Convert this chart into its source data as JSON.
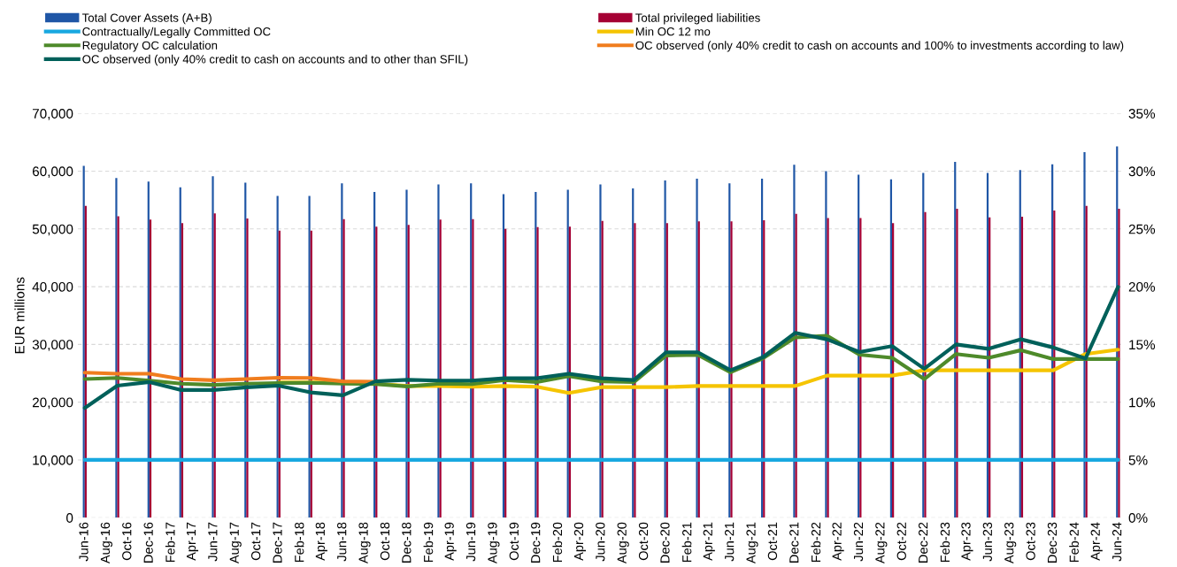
{
  "chart_data": {
    "type": "bar",
    "ylabel": "EUR millions",
    "x": [
      "2016-06",
      "2016-09",
      "2016-12",
      "2017-03",
      "2017-06",
      "2017-09",
      "2017-12",
      "2018-03",
      "2018-06",
      "2018-09",
      "2018-12",
      "2019-03",
      "2019-06",
      "2019-09",
      "2019-12",
      "2020-03",
      "2020-06",
      "2020-09",
      "2020-12",
      "2021-03",
      "2021-06",
      "2021-09",
      "2021-12",
      "2022-03",
      "2022-06",
      "2022-09",
      "2022-12",
      "2023-03",
      "2023-06",
      "2023-09",
      "2023-12",
      "2024-03",
      "2024-06"
    ],
    "series": [
      {
        "name": "Total Cover Assets (A+B)",
        "color": "#1f56a6",
        "values": [
          60900,
          58800,
          58200,
          57200,
          59100,
          58000,
          55700,
          55700,
          57900,
          56400,
          56800,
          57700,
          57900,
          56000,
          56400,
          56800,
          57700,
          57000,
          58400,
          58700,
          57900,
          58700,
          61100,
          60000,
          59400,
          58600,
          59700,
          61600,
          59700,
          60200,
          61200,
          63300,
          64300
        ]
      },
      {
        "name": "Total privileged liabilities",
        "color": "#a50034",
        "values": [
          54000,
          52200,
          51600,
          51000,
          52700,
          51800,
          49700,
          49700,
          51700,
          50400,
          50700,
          51600,
          51700,
          50000,
          50300,
          50400,
          51400,
          51000,
          51000,
          51300,
          51300,
          51500,
          52600,
          51900,
          51900,
          51000,
          52900,
          53500,
          52000,
          52100,
          53200,
          54000,
          53500
        ]
      },
      {
        "name": "Contractually/Legally Committed OC",
        "type": "line",
        "axis": "y2",
        "color": "#18a8e0",
        "values": [
          5,
          5,
          5,
          5,
          5,
          5,
          5,
          5,
          5,
          5,
          5,
          5,
          5,
          5,
          5,
          5,
          5,
          5,
          5,
          5,
          5,
          5,
          5,
          5,
          5,
          5,
          5,
          5,
          5,
          5,
          5,
          5,
          5
        ]
      },
      {
        "name": "Min OC 12 mo",
        "type": "line",
        "axis": "y2",
        "color": "#f5c400",
        "values": [
          null,
          null,
          null,
          null,
          null,
          null,
          11.7,
          11.7,
          11.7,
          11.6,
          11.4,
          11.4,
          11.33,
          11.4,
          11.33,
          10.8,
          11.3,
          11.3,
          11.3,
          11.4,
          11.4,
          11.4,
          11.4,
          12.3,
          12.3,
          12.3,
          12.76,
          12.76,
          12.76,
          12.76,
          12.76,
          14.17,
          14.55
        ]
      },
      {
        "name": "Regulatory OC calculation",
        "type": "line",
        "axis": "y2",
        "color": "#4e8a2a",
        "values": [
          12.0,
          12.1,
          11.87,
          11.6,
          11.5,
          11.6,
          11.66,
          11.68,
          11.6,
          11.56,
          11.36,
          11.6,
          11.56,
          11.92,
          11.74,
          12.25,
          11.8,
          11.74,
          14.04,
          14.1,
          12.58,
          13.8,
          15.6,
          15.75,
          14.11,
          13.84,
          12.0,
          14.17,
          13.84,
          14.5,
          13.73,
          13.73,
          13.73
        ]
      },
      {
        "name": "OC observed (only 40% credit to cash on accounts and 100% to investments according to law)",
        "type": "line",
        "axis": "y2",
        "color": "#f07d1e",
        "values": [
          12.56,
          12.46,
          12.46,
          12.0,
          11.9,
          12.0,
          12.12,
          12.1,
          11.8,
          11.77,
          null,
          null,
          null,
          null,
          null,
          null,
          null,
          null,
          null,
          null,
          null,
          null,
          null,
          null,
          null,
          null,
          null,
          null,
          null,
          null,
          null,
          null,
          null
        ]
      },
      {
        "name": "OC observed (only 40% credit to cash on accounts and to other than SFIL)",
        "type": "line",
        "axis": "y2",
        "color": "#00605a",
        "values": [
          9.5,
          11.43,
          11.74,
          11.05,
          11.05,
          11.28,
          11.43,
          10.85,
          10.6,
          11.8,
          11.94,
          11.87,
          11.87,
          12.07,
          12.07,
          12.46,
          12.07,
          11.92,
          14.32,
          14.32,
          12.76,
          13.9,
          16.0,
          15.44,
          14.34,
          14.85,
          12.89,
          15.0,
          14.62,
          15.44,
          14.73,
          13.78,
          19.98
        ]
      }
    ],
    "xlim": [
      "2016-05-12",
      "2024-06-18"
    ],
    "xticks": [
      {
        "value": "2016-06",
        "label": "Jun-16"
      },
      {
        "value": "2016-08",
        "label": "Aug-16"
      },
      {
        "value": "2016-10",
        "label": "Oct-16"
      },
      {
        "value": "2016-12",
        "label": "Dec-16"
      },
      {
        "value": "2017-02",
        "label": "Feb-17"
      },
      {
        "value": "2017-04",
        "label": "Apr-17"
      },
      {
        "value": "2017-06",
        "label": "Jun-17"
      },
      {
        "value": "2017-08",
        "label": "Aug-17"
      },
      {
        "value": "2017-10",
        "label": "Oct-17"
      },
      {
        "value": "2017-12",
        "label": "Dec-17"
      },
      {
        "value": "2018-02",
        "label": "Feb-18"
      },
      {
        "value": "2018-04",
        "label": "Apr-18"
      },
      {
        "value": "2018-06",
        "label": "Jun-18"
      },
      {
        "value": "2018-08",
        "label": "Aug-18"
      },
      {
        "value": "2018-10",
        "label": "Oct-18"
      },
      {
        "value": "2018-12",
        "label": "Dec-18"
      },
      {
        "value": "2019-02",
        "label": "Feb-19"
      },
      {
        "value": "2019-04",
        "label": "Apr-19"
      },
      {
        "value": "2019-06",
        "label": "Jun-19"
      },
      {
        "value": "2019-08",
        "label": "Aug-19"
      },
      {
        "value": "2019-10",
        "label": "Oct-19"
      },
      {
        "value": "2019-12",
        "label": "Dec-19"
      },
      {
        "value": "2020-02",
        "label": "Feb-20"
      },
      {
        "value": "2020-04",
        "label": "Apr-20"
      },
      {
        "value": "2020-06",
        "label": "Jun-20"
      },
      {
        "value": "2020-08",
        "label": "Aug-20"
      },
      {
        "value": "2020-10",
        "label": "Oct-20"
      },
      {
        "value": "2020-12",
        "label": "Dec-20"
      },
      {
        "value": "2021-02",
        "label": "Feb-21"
      },
      {
        "value": "2021-04",
        "label": "Apr-21"
      },
      {
        "value": "2021-06",
        "label": "Jun-21"
      },
      {
        "value": "2021-08",
        "label": "Aug-21"
      },
      {
        "value": "2021-10",
        "label": "Oct-21"
      },
      {
        "value": "2021-12",
        "label": "Dec-21"
      },
      {
        "value": "2022-02",
        "label": "Feb-22"
      },
      {
        "value": "2022-04",
        "label": "Apr-22"
      },
      {
        "value": "2022-06",
        "label": "Jun-22"
      },
      {
        "value": "2022-08",
        "label": "Aug-22"
      },
      {
        "value": "2022-10",
        "label": "Oct-22"
      },
      {
        "value": "2022-12",
        "label": "Dec-22"
      },
      {
        "value": "2023-02",
        "label": "Feb-23"
      },
      {
        "value": "2023-04",
        "label": "Apr-23"
      },
      {
        "value": "2023-06",
        "label": "Jun-23"
      },
      {
        "value": "2023-08",
        "label": "Aug-23"
      },
      {
        "value": "2023-10",
        "label": "Oct-23"
      },
      {
        "value": "2023-12",
        "label": "Dec-23"
      },
      {
        "value": "2024-02",
        "label": "Feb-24"
      },
      {
        "value": "2024-04",
        "label": "Apr-24"
      },
      {
        "value": "2024-06",
        "label": "Jun-24"
      }
    ],
    "ylim": [
      0,
      70000
    ],
    "yticks": [
      0,
      {
        "value": 10000,
        "label": "10,000"
      },
      {
        "value": 20000,
        "label": "20,000"
      },
      {
        "value": 30000,
        "label": "30,000"
      },
      {
        "value": 40000,
        "label": "40,000"
      },
      {
        "value": 50000,
        "label": "50,000"
      },
      {
        "value": 60000,
        "label": "60,000"
      },
      {
        "value": 70000,
        "label": "70,000"
      }
    ],
    "y2lim": [
      0,
      35
    ],
    "y2ticks": [
      {
        "value": 0,
        "label": "0%"
      },
      {
        "value": 5,
        "label": "5%"
      },
      {
        "value": 10,
        "label": "10%"
      },
      {
        "value": 15,
        "label": "15%"
      },
      {
        "value": 20,
        "label": "20%"
      },
      {
        "value": 25,
        "label": "25%"
      },
      {
        "value": 30,
        "label": "30%"
      },
      {
        "value": 35,
        "label": "35%"
      }
    ],
    "grid": "y",
    "legend": "top",
    "line_style": "solid",
    "marker": "none"
  }
}
